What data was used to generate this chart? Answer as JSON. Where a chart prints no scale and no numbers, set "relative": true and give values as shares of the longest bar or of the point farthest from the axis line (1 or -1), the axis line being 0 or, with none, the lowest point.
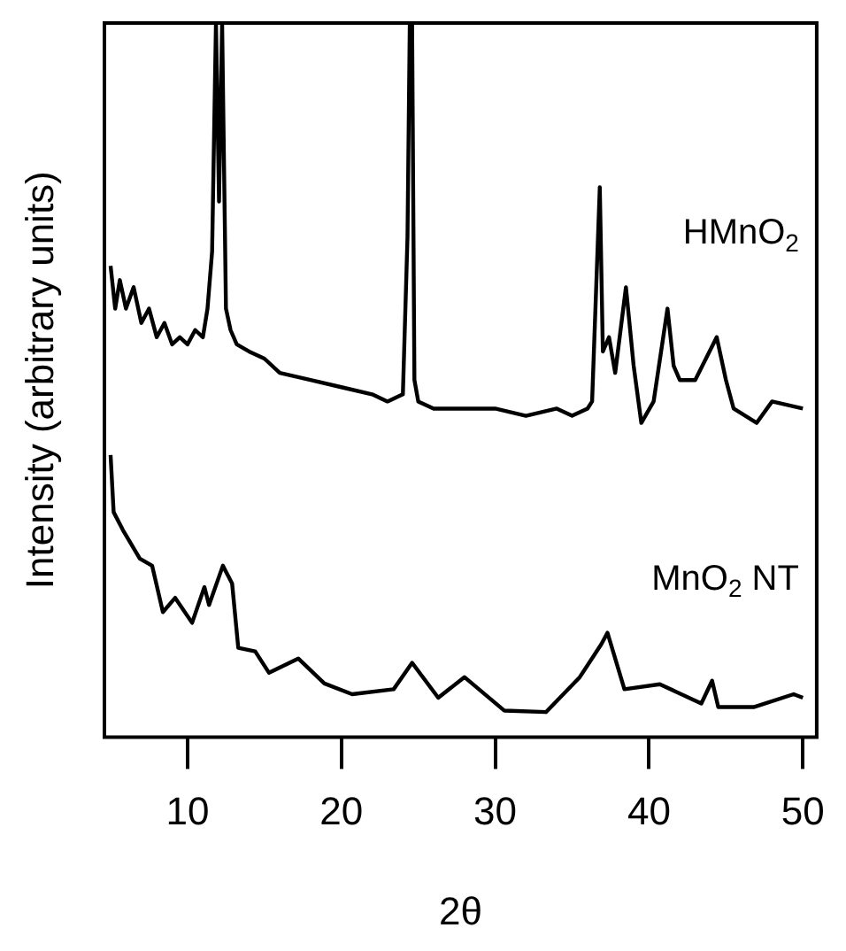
{
  "chart_data": {
    "type": "line",
    "relative": true,
    "xlabel": "2θ",
    "ylabel": "Intensity (arbitrary units)",
    "xlim": [
      4.6,
      50.9
    ],
    "xticks": [
      10,
      20,
      30,
      40,
      50
    ],
    "grid": false,
    "legend": false,
    "marker": "none",
    "line_style": "solid",
    "series": [
      {
        "name": "HMnO$_{2}$",
        "color": "#000000",
        "x": [
          5.0,
          5.3,
          5.6,
          6.0,
          6.5,
          7.0,
          7.5,
          8.0,
          8.5,
          9.0,
          9.5,
          10.0,
          10.5,
          11.0,
          11.3,
          11.6,
          11.85,
          12.05,
          12.25,
          12.5,
          12.8,
          13.2,
          14,
          15,
          16,
          18,
          20,
          22,
          23,
          24.0,
          24.3,
          24.45,
          24.6,
          24.75,
          25.0,
          26,
          28,
          30,
          32,
          34,
          35,
          36.0,
          36.3,
          36.8,
          37.0,
          37.4,
          37.8,
          38.5,
          39.0,
          39.5,
          40.3,
          41.2,
          41.6,
          42.0,
          43.0,
          44.4,
          45.0,
          45.5,
          47.0,
          48.0,
          50.0
        ],
        "values": [
          0.66,
          0.6,
          0.64,
          0.6,
          0.63,
          0.58,
          0.6,
          0.56,
          0.58,
          0.55,
          0.56,
          0.55,
          0.57,
          0.56,
          0.6,
          0.68,
          1,
          0.75,
          1,
          0.6,
          0.57,
          0.55,
          0.54,
          0.53,
          0.51,
          0.5,
          0.49,
          0.48,
          0.47,
          0.48,
          0.7,
          1,
          1,
          0.5,
          0.47,
          0.46,
          0.46,
          0.46,
          0.45,
          0.46,
          0.45,
          0.46,
          0.47,
          0.77,
          0.54,
          0.56,
          0.51,
          0.63,
          0.52,
          0.44,
          0.47,
          0.6,
          0.52,
          0.5,
          0.5,
          0.56,
          0.5,
          0.46,
          0.44,
          0.47,
          0.46
        ]
      },
      {
        "name": "MnO$_{2}$ NT",
        "color": "#000000",
        "x": [
          5.0,
          5.2,
          5.8,
          6.9,
          7.7,
          8.4,
          9.2,
          10.3,
          11.1,
          11.4,
          12.3,
          12.9,
          13.3,
          14.4,
          15.3,
          17.2,
          18.9,
          20.7,
          23.4,
          24.6,
          26.3,
          28.0,
          30.6,
          33.3,
          35.5,
          36.9,
          37.3,
          38.4,
          40.7,
          43.4,
          44.1,
          44.5,
          46.8,
          49.4,
          50.0
        ],
        "values": [
          0.395,
          0.315,
          0.29,
          0.25,
          0.24,
          0.175,
          0.195,
          0.16,
          0.21,
          0.185,
          0.24,
          0.215,
          0.125,
          0.12,
          0.09,
          0.11,
          0.075,
          0.06,
          0.067,
          0.104,
          0.055,
          0.084,
          0.037,
          0.035,
          0.084,
          0.13,
          0.146,
          0.067,
          0.074,
          0.047,
          0.079,
          0.042,
          0.042,
          0.06,
          0.055
        ]
      }
    ]
  }
}
